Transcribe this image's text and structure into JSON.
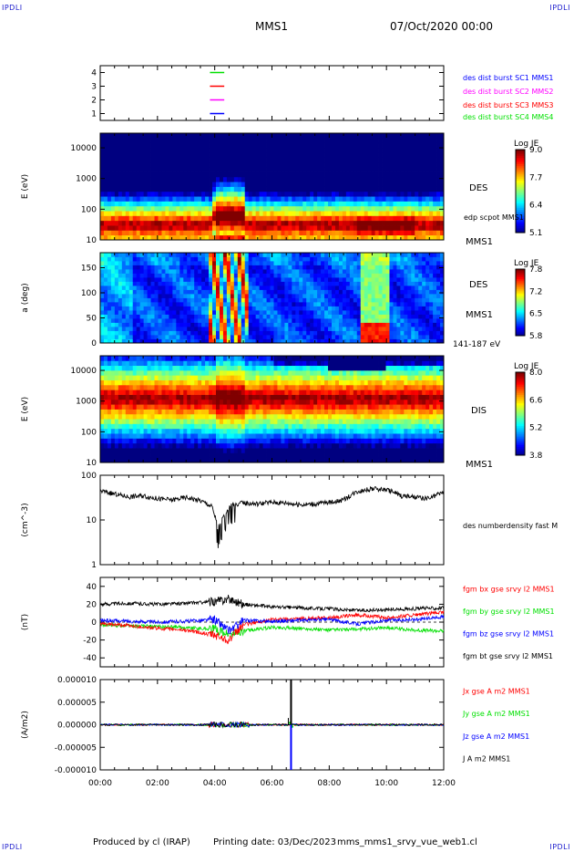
{
  "corners": {
    "top_left": "IPDLI",
    "top_right": "IPDLI",
    "bottom_left": "IPDLI",
    "bottom_right": "IPDLI"
  },
  "header": {
    "title": "MMS1",
    "date": "07/Oct/2020 00:00"
  },
  "footer": {
    "produced": "Produced by cl (IRAP)",
    "printing": "Printing date: 03/Dec/2023",
    "file": "mms_mms1_srvy_vue_web1.cl"
  },
  "colors": {
    "cyan": "#00c0e0",
    "blue": "#0000ff",
    "magenta": "#ff00ff",
    "red": "#ff0000",
    "green": "#00e000",
    "black": "#000000"
  },
  "chart_data": [
    {
      "type": "line",
      "name": "burst-availability",
      "ylim": [
        0.5,
        4.5
      ],
      "yticks": [
        "1",
        "2",
        "3",
        "4"
      ],
      "legend": [
        {
          "label": "des dist burst SC1 MMS1",
          "color": "#0000ff"
        },
        {
          "label": "des dist burst SC2 MMS2",
          "color": "#ff00ff"
        },
        {
          "label": "des dist burst SC3 MMS3",
          "color": "#ff0000"
        },
        {
          "label": "des dist burst SC4 MMS4",
          "color": "#00e000"
        }
      ],
      "segments": [
        {
          "level": 4,
          "t0": "03:50",
          "t1": "04:20",
          "color": "#00e000"
        },
        {
          "level": 3,
          "t0": "03:50",
          "t1": "04:20",
          "color": "#ff0000"
        },
        {
          "level": 2,
          "t0": "03:50",
          "t1": "04:20",
          "color": "#ff00ff"
        },
        {
          "level": 1,
          "t0": "03:50",
          "t1": "04:20",
          "color": "#0000ff"
        }
      ]
    },
    {
      "type": "heatmap",
      "name": "des-energy",
      "ylabel": "E (eV)",
      "scale": "log",
      "ylim": [
        10,
        30000
      ],
      "yticks": [
        "10",
        "100",
        "1000",
        "10000"
      ],
      "instrument": "DES",
      "spacecraft": "MMS1",
      "overlay_label": "edp scpot MMS1",
      "colorbar": {
        "title": "Log JE",
        "ticks": [
          "9.0",
          "7.7",
          "6.4",
          "5.1"
        ]
      }
    },
    {
      "type": "heatmap",
      "name": "des-pitch-angle",
      "ylabel": "a (deg)",
      "ylim": [
        0,
        180
      ],
      "yticks": [
        "0",
        "50",
        "100",
        "150"
      ],
      "instrument": "DES",
      "spacecraft": "MMS1",
      "energy_band": "141-187 eV",
      "colorbar": {
        "title": "Log JE",
        "ticks": [
          "7.8",
          "7.2",
          "6.5",
          "5.8"
        ]
      }
    },
    {
      "type": "heatmap",
      "name": "dis-energy",
      "ylabel": "E (eV)",
      "scale": "log",
      "ylim": [
        10,
        30000
      ],
      "yticks": [
        "10",
        "100",
        "1000",
        "10000"
      ],
      "instrument": "DIS",
      "spacecraft": "MMS1",
      "colorbar": {
        "title": "Log JE",
        "ticks": [
          "8.0",
          "6.6",
          "5.2",
          "3.8"
        ]
      }
    },
    {
      "type": "line",
      "name": "density",
      "ylabel": "(cm^-3)",
      "scale": "log",
      "ylim": [
        1,
        100
      ],
      "yticks": [
        "1",
        "10",
        "100"
      ],
      "legend": [
        {
          "label": "des numberdensity fast M",
          "color": "#000000"
        }
      ],
      "series": [
        {
          "color": "#000000",
          "t": [
            0,
            0.5,
            1,
            1.5,
            2,
            2.5,
            3,
            3.5,
            3.9,
            4.1,
            4.3,
            4.6,
            5,
            5.5,
            6,
            6.5,
            7,
            7.5,
            8,
            8.5,
            9,
            9.5,
            10,
            10.5,
            11,
            11.5,
            12
          ],
          "values": [
            45,
            38,
            33,
            35,
            30,
            28,
            32,
            27,
            20,
            6,
            12,
            22,
            24,
            23,
            25,
            24,
            22,
            23,
            25,
            28,
            44,
            50,
            48,
            35,
            32,
            30,
            42
          ]
        }
      ]
    },
    {
      "type": "line",
      "name": "magnetic-field",
      "ylabel": "(nT)",
      "ylim": [
        -50,
        50
      ],
      "yticks": [
        "-40",
        "-20",
        "0",
        "20",
        "40"
      ],
      "legend": [
        {
          "label": "fgm bx gse srvy l2 MMS1",
          "color": "#ff0000"
        },
        {
          "label": "fgm by gse srvy l2 MMS1",
          "color": "#00e000"
        },
        {
          "label": "fgm bz gse srvy l2 MMS1",
          "color": "#0000ff"
        },
        {
          "label": "fgm bt gse srvy l2 MMS1",
          "color": "#000000"
        }
      ],
      "series": [
        {
          "color": "#00e000",
          "t": [
            0,
            1,
            2,
            3,
            4,
            4.5,
            5,
            6,
            7,
            8,
            9,
            10,
            11,
            12
          ],
          "values": [
            -3,
            -4,
            -5,
            -6,
            -8,
            -14,
            -10,
            -6,
            -7,
            -9,
            -8,
            -6,
            -9,
            -10
          ]
        },
        {
          "color": "#ff0000",
          "t": [
            0,
            1,
            2,
            3,
            4,
            4.5,
            5,
            6,
            7,
            8,
            9,
            10,
            11,
            12
          ],
          "values": [
            -2,
            -4,
            -7,
            -9,
            -15,
            -20,
            -3,
            3,
            4,
            5,
            8,
            5,
            8,
            11
          ]
        },
        {
          "color": "#0000ff",
          "t": [
            0,
            1,
            2,
            3,
            4,
            4.5,
            5,
            6,
            7,
            8,
            9,
            10,
            11,
            12
          ],
          "values": [
            2,
            1,
            0,
            1,
            3,
            -10,
            2,
            1,
            2,
            3,
            -2,
            2,
            3,
            6
          ]
        },
        {
          "color": "#000000",
          "t": [
            0,
            1,
            2,
            3,
            4,
            4.5,
            5,
            6,
            7,
            8,
            9,
            10,
            11,
            12
          ],
          "values": [
            20,
            21,
            20,
            21,
            23,
            26,
            20,
            17,
            16,
            15,
            13,
            14,
            15,
            16
          ]
        }
      ]
    },
    {
      "type": "line",
      "name": "current-density",
      "ylabel": "(A/m2)",
      "ylim": [
        -1e-05,
        1e-05
      ],
      "yticks": [
        "-0.000010",
        "-0.000005",
        "0.000000",
        "0.000005",
        "0.000010"
      ],
      "xticks": [
        "00:00",
        "02:00",
        "04:00",
        "06:00",
        "08:00",
        "10:00",
        "12:00"
      ],
      "legend": [
        {
          "label": "Jx gse A m2 MMS1",
          "color": "#ff0000"
        },
        {
          "label": "Jy gse A m2 MMS1",
          "color": "#00e000"
        },
        {
          "label": "Jz gse A m2 MMS1",
          "color": "#0000ff"
        },
        {
          "label": "J A m2 MMS1",
          "color": "#000000"
        }
      ],
      "spike": {
        "t": "06:40",
        "peak_J": 1e-05,
        "min_Jz": -1e-05
      }
    }
  ]
}
